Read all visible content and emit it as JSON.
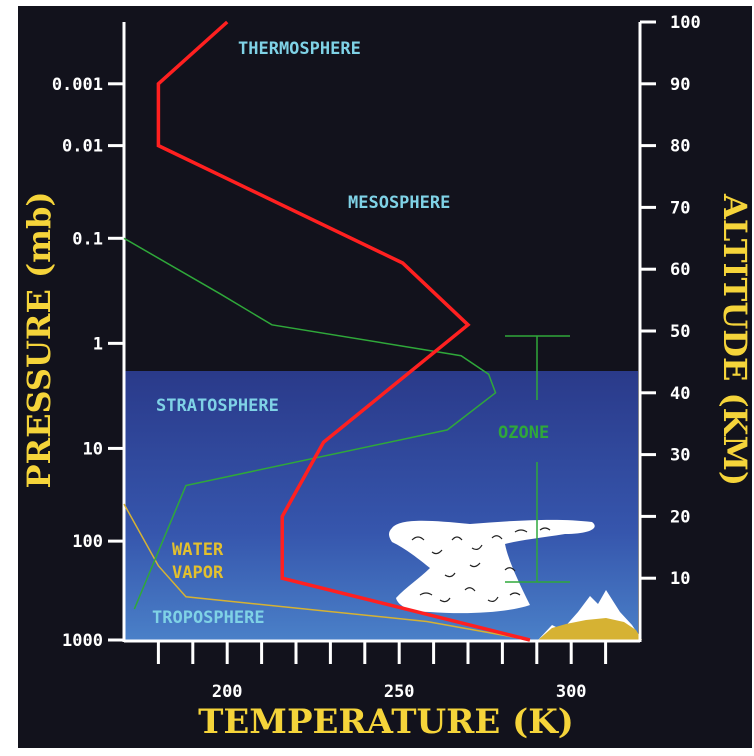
{
  "chart_data": {
    "type": "line",
    "xlabel": "TEMPERATURE (K)",
    "ylabel_left": "PRESSURE (mb)",
    "ylabel_right": "ALTITUDE (KM)",
    "xlim": [
      170,
      320
    ],
    "ylim_altitude": [
      0,
      100
    ],
    "x_ticks": [
      200,
      250,
      300
    ],
    "pressure_ticks": [
      "0.001",
      "0.01",
      "0.1",
      "1",
      "10",
      "100",
      "1000"
    ],
    "altitude_ticks": [
      "10",
      "20",
      "30",
      "40",
      "50",
      "60",
      "70",
      "80",
      "90",
      "100"
    ],
    "region_labels": {
      "thermosphere": "THERMOSPHERE",
      "mesosphere": "MESOSPHERE",
      "stratosphere": "STRATOSPHERE",
      "troposphere": "TROPOSPHERE",
      "ozone": "OZONE",
      "water_vapor_line1": "WATER",
      "water_vapor_line2": "VAPOR"
    },
    "temperature_profile": {
      "altitude_km": [
        0,
        10,
        20,
        32,
        51,
        61,
        80,
        90,
        100
      ],
      "temperature_k": [
        288,
        216,
        216,
        228,
        270,
        251,
        180,
        180,
        200
      ]
    },
    "ozone_profile": {
      "altitude_km": [
        5,
        25,
        34,
        40,
        43,
        46,
        51,
        56,
        65
      ],
      "temperature_axis": [
        173,
        188,
        264,
        278,
        276,
        268,
        213,
        198,
        170
      ]
    },
    "water_vapor_profile": {
      "altitude_km": [
        22,
        12,
        7,
        3,
        0
      ],
      "temperature_axis": [
        170,
        180,
        188,
        258,
        288
      ]
    },
    "colors": {
      "background": "#12121c",
      "temperature_line": "#ff2020",
      "ozone_line": "#2fa83a",
      "water_vapor_line": "#d6b233",
      "label_blue": "#7fd2e6",
      "label_yellow": "#e3c02e",
      "axis_title": "#f5d43a"
    }
  }
}
